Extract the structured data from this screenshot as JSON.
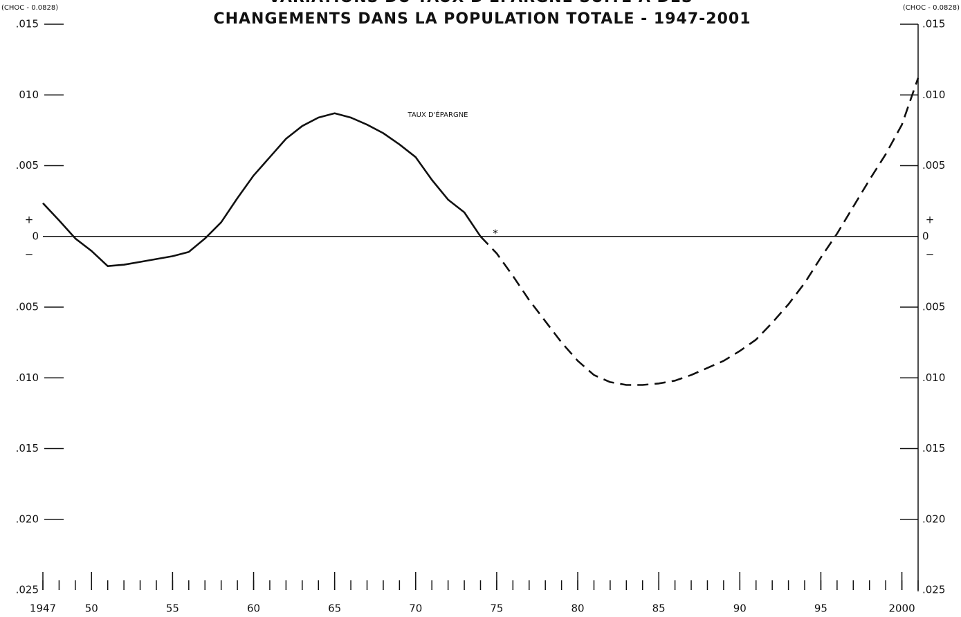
{
  "chart_data": {
    "type": "line",
    "title": "VARIATIONS DU TAUX D'ÉPARGNE SUITE À DES",
    "subtitle": "CHANGEMENTS DANS LA POPULATION TOTALE - 1947-2001",
    "left_note": "(CHOC - 0.0828)",
    "right_note": "(CHOC - 0.0828)",
    "series_label": "TAUX D'ÉPARGNE",
    "marker_note": "*",
    "sign_labels": [
      "+",
      "−"
    ],
    "zero_line": true,
    "color": "#111111",
    "x": [
      1947,
      1948,
      1949,
      1950,
      1951,
      1952,
      1953,
      1954,
      1955,
      1956,
      1957,
      1958,
      1959,
      1960,
      1961,
      1962,
      1963,
      1964,
      1965,
      1966,
      1967,
      1968,
      1969,
      1970,
      1971,
      1972,
      1973,
      1974,
      1975,
      1976,
      1977,
      1978,
      1979,
      1980,
      1981,
      1982,
      1983,
      1984,
      1985,
      1986,
      1987,
      1988,
      1989,
      1990,
      1991,
      1992,
      1993,
      1994,
      1995,
      1996,
      1997,
      1998,
      1999,
      2000,
      2001
    ],
    "series": [
      {
        "style": "solid",
        "values": [
          0.00235,
          0.00113,
          -0.00015,
          -0.00103,
          -0.0021,
          -0.002,
          -0.0018,
          -0.0016,
          -0.0014,
          -0.0011,
          -0.00015,
          0.001,
          0.0027,
          0.0043,
          0.0056,
          0.0069,
          0.0078,
          0.0084,
          0.0087,
          0.0084,
          0.0079,
          0.0073,
          0.0065,
          0.0056,
          0.004,
          0.0026,
          0.0017,
          0,
          null,
          null,
          null,
          null,
          null,
          null,
          null,
          null,
          null,
          null,
          null,
          null,
          null,
          null,
          null,
          null,
          null,
          null,
          null,
          null,
          null,
          null,
          null,
          null,
          null,
          null,
          null
        ]
      },
      {
        "style": "dashed",
        "values": [
          null,
          null,
          null,
          null,
          null,
          null,
          null,
          null,
          null,
          null,
          null,
          null,
          null,
          null,
          null,
          null,
          null,
          null,
          null,
          null,
          null,
          null,
          null,
          null,
          null,
          null,
          null,
          0,
          -0.0012,
          -0.0028,
          -0.0045,
          -0.006,
          -0.0075,
          -0.0088,
          -0.0098,
          -0.0103,
          -0.0105,
          -0.0105,
          -0.0104,
          -0.0102,
          -0.0098,
          -0.0093,
          -0.0088,
          -0.0081,
          -0.0073,
          -0.0061,
          -0.0048,
          -0.0033,
          -0.0015,
          0.0002,
          0.0021,
          0.004,
          0.0058,
          0.0079,
          0.0112
        ]
      }
    ],
    "xlim": [
      1947,
      2001
    ],
    "xticks": [
      1947,
      {
        "value": 1950,
        "label": "50"
      },
      {
        "value": 1955,
        "label": "55"
      },
      {
        "value": 1960,
        "label": "60"
      },
      {
        "value": 1965,
        "label": "65"
      },
      {
        "value": 1970,
        "label": "70"
      },
      {
        "value": 1975,
        "label": "75"
      },
      {
        "value": 1980,
        "label": "80"
      },
      {
        "value": 1985,
        "label": "85"
      },
      {
        "value": 1990,
        "label": "90"
      },
      {
        "value": 1995,
        "label": "95"
      },
      2000
    ],
    "ylim": [
      -0.025,
      0.015
    ],
    "yticks": [
      {
        "value": 0.015,
        "label": ".015"
      },
      {
        "value": 0.01,
        "label": "010"
      },
      {
        "value": 0.005,
        "label": ".005"
      },
      0,
      {
        "value": -0.005,
        "label": ".005"
      },
      {
        "value": -0.01,
        "label": ".010"
      },
      {
        "value": -0.015,
        "label": ".015"
      },
      {
        "value": -0.02,
        "label": ".020"
      },
      {
        "value": -0.025,
        "label": ".025"
      }
    ],
    "y2lim": [
      -0.025,
      0.015
    ],
    "y2ticks": [
      {
        "value": 0.015,
        "label": ".015"
      },
      {
        "value": 0.01,
        "label": ".010"
      },
      {
        "value": 0.005,
        "label": ".005"
      },
      0,
      {
        "value": -0.005,
        "label": ".005"
      },
      {
        "value": -0.01,
        "label": ".010"
      },
      {
        "value": -0.015,
        "label": ".015"
      },
      {
        "value": -0.02,
        "label": ".020"
      },
      {
        "value": -0.025,
        "label": ".025"
      }
    ]
  }
}
